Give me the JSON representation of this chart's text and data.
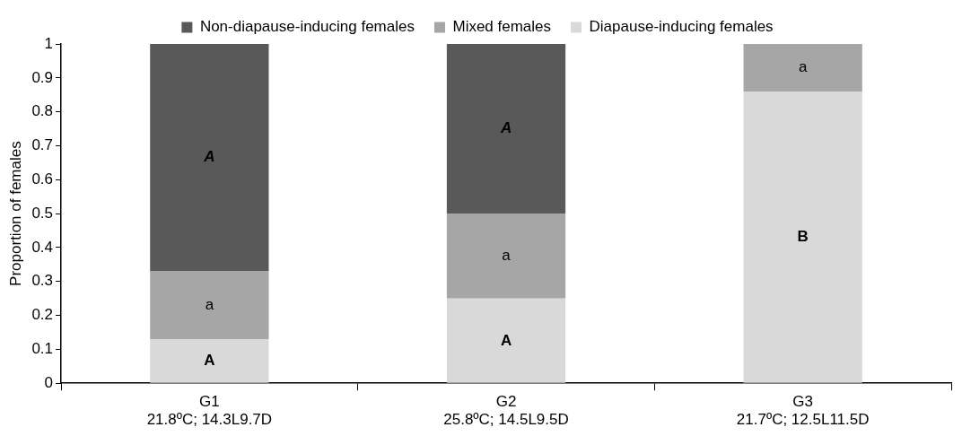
{
  "chart_data": {
    "type": "bar",
    "stacked": true,
    "ylabel": "Proportion of females",
    "categories": [
      "G1\n21.8ºC; 14.3L9.7D",
      "G2\n25.8ºC; 14.5L9.5D",
      "G3\n21.7ºC; 12.5L11.5D"
    ],
    "series": [
      {
        "name": "Diapause-inducing females",
        "color": "#d9d9d9",
        "values": [
          0.13,
          0.25,
          0.86
        ]
      },
      {
        "name": "Mixed females",
        "color": "#a6a6a6",
        "values": [
          0.2,
          0.25,
          0.14
        ]
      },
      {
        "name": "Non-diapause-inducing females",
        "color": "#595959",
        "values": [
          0.67,
          0.5,
          0
        ]
      }
    ],
    "ylim": [
      0,
      1
    ],
    "yticks": [
      0,
      0.1,
      0.2,
      0.3,
      0.4,
      0.5,
      0.6,
      0.7,
      0.8,
      0.9,
      1
    ],
    "grid": false,
    "legend": "top",
    "annotations": [
      "A",
      "a",
      "A",
      "A",
      "a",
      "A",
      "B",
      "a"
    ]
  }
}
